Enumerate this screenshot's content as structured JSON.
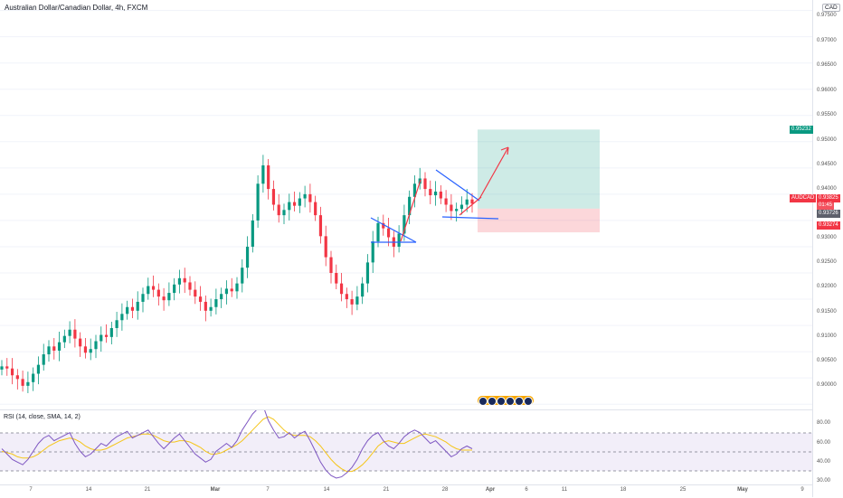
{
  "chart_header": {
    "title": "Australian Dollar/Canadian Dollar, 4h, FXCM"
  },
  "price_scale": {
    "currency": "CAD",
    "labels": [
      "0.97500",
      "0.97000",
      "0.96500",
      "0.96000",
      "0.95500",
      "0.95000",
      "0.94500",
      "0.94000",
      "0.93000",
      "0.92500",
      "0.92000",
      "0.91500",
      "0.91000",
      "0.90500",
      "0.90000"
    ],
    "tags": {
      "target": "0.95232",
      "symbol": "AUDCAD",
      "current": "0.93825",
      "countdown": "01:45",
      "entry": "0.93726",
      "stop": "0.93274"
    },
    "colors": {
      "target": "#089981",
      "symbol": "#f23645",
      "entry": "#5d606b",
      "stop": "#f23645"
    }
  },
  "rsi_panel": {
    "title": "RSI (14, close, SMA, 14, 2)",
    "labels": [
      "80.00",
      "60.00",
      "40.00",
      "30.00"
    ]
  },
  "time_axis": {
    "ticks": [
      {
        "label": "7",
        "bold": false
      },
      {
        "label": "14",
        "bold": false
      },
      {
        "label": "21",
        "bold": false
      },
      {
        "label": "Mar",
        "bold": true
      },
      {
        "label": "7",
        "bold": false
      },
      {
        "label": "14",
        "bold": false
      },
      {
        "label": "21",
        "bold": false
      },
      {
        "label": "28",
        "bold": false
      },
      {
        "label": "Apr",
        "bold": true
      },
      {
        "label": "6",
        "bold": false
      },
      {
        "label": "11",
        "bold": false
      },
      {
        "label": "18",
        "bold": false
      },
      {
        "label": "25",
        "bold": false
      },
      {
        "label": "May",
        "bold": true
      },
      {
        "label": "9",
        "bold": false
      }
    ]
  },
  "chart_data": {
    "type": "candlestick",
    "symbol": "AUDCAD",
    "interval": "4h",
    "y_range": [
      0.899,
      0.977
    ],
    "price_series": [
      0.9072,
      0.9068,
      0.9055,
      0.9048,
      0.9035,
      0.9042,
      0.9058,
      0.9075,
      0.9095,
      0.911,
      0.9102,
      0.9118,
      0.913,
      0.9142,
      0.9125,
      0.911,
      0.9098,
      0.9105,
      0.912,
      0.9132,
      0.9128,
      0.9145,
      0.916,
      0.9172,
      0.9185,
      0.9178,
      0.9195,
      0.921,
      0.9225,
      0.9218,
      0.9205,
      0.9198,
      0.9212,
      0.9228,
      0.924,
      0.9232,
      0.9218,
      0.9205,
      0.9195,
      0.9178,
      0.9185,
      0.92,
      0.921,
      0.922,
      0.9215,
      0.923,
      0.926,
      0.93,
      0.935,
      0.942,
      0.9455,
      0.941,
      0.938,
      0.936,
      0.937,
      0.9385,
      0.9378,
      0.9392,
      0.94,
      0.9385,
      0.936,
      0.932,
      0.928,
      0.925,
      0.923,
      0.921,
      0.92,
      0.919,
      0.9205,
      0.923,
      0.927,
      0.931,
      0.9345,
      0.9335,
      0.9318,
      0.93,
      0.9325,
      0.936,
      0.9395,
      0.942,
      0.943,
      0.941,
      0.9398,
      0.9405,
      0.9392,
      0.938,
      0.9368,
      0.9372,
      0.938,
      0.939,
      0.9382
    ],
    "last_price": 0.93825,
    "position": {
      "type": "long",
      "entry": 0.93726,
      "target": 0.95232,
      "stop": 0.93274
    },
    "rsi": {
      "levels": [
        70,
        50,
        30
      ],
      "y_range": [
        30,
        80
      ],
      "values": [
        54,
        50,
        46,
        44,
        42,
        46,
        52,
        58,
        62,
        64,
        60,
        62,
        64,
        66,
        58,
        52,
        48,
        50,
        54,
        58,
        56,
        60,
        63,
        65,
        67,
        62,
        64,
        66,
        68,
        63,
        58,
        54,
        58,
        62,
        65,
        60,
        55,
        50,
        47,
        44,
        46,
        52,
        55,
        58,
        55,
        60,
        68,
        74,
        80,
        84,
        86,
        75,
        68,
        62,
        63,
        66,
        62,
        65,
        67,
        60,
        52,
        44,
        38,
        34,
        32,
        33,
        36,
        40,
        46,
        54,
        60,
        64,
        66,
        60,
        56,
        54,
        58,
        63,
        66,
        68,
        66,
        62,
        58,
        60,
        56,
        52,
        48,
        50,
        54,
        56,
        54
      ],
      "ma_values": [
        52,
        51,
        50,
        48,
        47,
        47,
        48,
        50,
        53,
        56,
        58,
        60,
        61,
        62,
        61,
        59,
        56,
        54,
        53,
        53,
        54,
        56,
        58,
        60,
        62,
        63,
        64,
        65,
        65,
        64,
        62,
        60,
        59,
        59,
        60,
        60,
        59,
        57,
        55,
        52,
        50,
        50,
        51,
        53,
        55,
        57,
        60,
        64,
        68,
        72,
        76,
        78,
        76,
        72,
        68,
        65,
        64,
        64,
        64,
        63,
        60,
        56,
        51,
        46,
        42,
        39,
        37,
        37,
        39,
        42,
        46,
        51,
        56,
        59,
        60,
        59,
        58,
        58,
        60,
        62,
        64,
        65,
        64,
        63,
        61,
        59,
        56,
        54,
        53,
        53,
        53
      ]
    }
  }
}
